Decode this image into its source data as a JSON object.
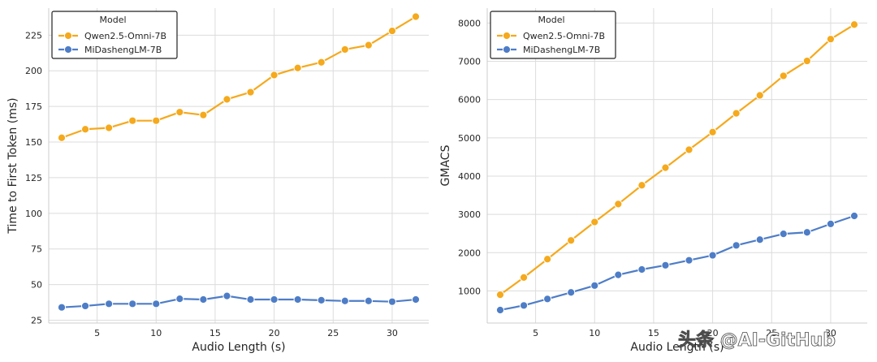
{
  "chart_data": [
    {
      "type": "line",
      "title": "",
      "xlabel": "Audio Length (s)",
      "ylabel": "Time to First Token (ms)",
      "xlim": [
        0.9,
        33.1
      ],
      "ylim": [
        23,
        244
      ],
      "xticks": [
        5,
        10,
        15,
        20,
        25,
        30
      ],
      "yticks": [
        25,
        50,
        75,
        100,
        125,
        150,
        175,
        200,
        225
      ],
      "grid": true,
      "legend": {
        "title": "Model",
        "placement": "top-left"
      },
      "x": [
        2,
        4,
        6,
        8,
        10,
        12,
        14,
        16,
        18,
        20,
        22,
        24,
        26,
        28,
        30,
        32
      ],
      "series": [
        {
          "name": "Qwen2.5-Omni-7B",
          "color": "#f5a91c",
          "values": [
            153,
            159,
            160,
            165,
            165,
            171,
            169,
            180,
            185,
            197,
            202,
            206,
            215,
            218,
            228,
            238
          ]
        },
        {
          "name": "MiDashengLM-7B",
          "color": "#4e7dc7",
          "values": [
            34,
            35,
            36.5,
            36.5,
            36.5,
            40,
            39.5,
            42,
            39.5,
            39.5,
            39.5,
            39,
            38.5,
            38.5,
            38,
            39.5
          ]
        }
      ]
    },
    {
      "type": "line",
      "title": "",
      "xlabel": "Audio Length (s)",
      "ylabel": "GMACS",
      "xlim": [
        0.9,
        33.1
      ],
      "ylim": [
        160,
        8390
      ],
      "xticks": [
        5,
        10,
        15,
        20,
        25,
        30
      ],
      "yticks": [
        1000,
        2000,
        3000,
        4000,
        5000,
        6000,
        7000,
        8000
      ],
      "grid": true,
      "legend": {
        "title": "Model",
        "placement": "top-left"
      },
      "x": [
        2,
        4,
        6,
        8,
        10,
        12,
        14,
        16,
        18,
        20,
        22,
        24,
        26,
        28,
        30,
        32
      ],
      "series": [
        {
          "name": "Qwen2.5-Omni-7B",
          "color": "#f5a91c",
          "values": [
            900,
            1350,
            1830,
            2320,
            2800,
            3270,
            3760,
            4220,
            4690,
            5150,
            5640,
            6110,
            6620,
            7010,
            7580,
            7960
          ]
        },
        {
          "name": "MiDashengLM-7B",
          "color": "#4e7dc7",
          "values": [
            500,
            620,
            790,
            960,
            1140,
            1420,
            1560,
            1670,
            1800,
            1930,
            2190,
            2340,
            2490,
            2530,
            2750,
            2960
          ]
        }
      ]
    }
  ],
  "watermark": "头条 @AI-GitHub"
}
